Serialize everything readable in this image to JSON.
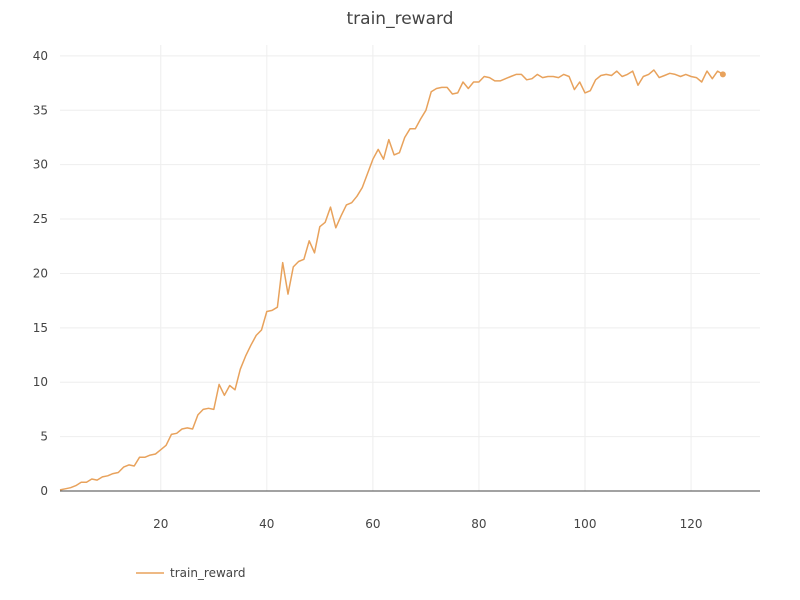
{
  "chart_data": {
    "type": "line",
    "title": "train_reward",
    "xlabel": "",
    "ylabel": "",
    "xlim": [
      1,
      133
    ],
    "ylim": [
      0,
      41
    ],
    "x_ticks": [
      20,
      40,
      60,
      80,
      100,
      120
    ],
    "y_ticks": [
      0,
      5,
      10,
      15,
      20,
      25,
      30,
      35,
      40
    ],
    "grid": true,
    "legend": "bottom-left",
    "color": "#e8a25c",
    "series": [
      {
        "name": "train_reward",
        "x": [
          1,
          2,
          3,
          4,
          5,
          6,
          7,
          8,
          9,
          10,
          11,
          12,
          13,
          14,
          15,
          16,
          17,
          18,
          19,
          20,
          21,
          22,
          23,
          24,
          25,
          26,
          27,
          28,
          29,
          30,
          31,
          32,
          33,
          34,
          35,
          36,
          37,
          38,
          39,
          40,
          41,
          42,
          43,
          44,
          45,
          46,
          47,
          48,
          49,
          50,
          51,
          52,
          53,
          54,
          55,
          56,
          57,
          58,
          59,
          60,
          61,
          62,
          63,
          64,
          65,
          66,
          67,
          68,
          69,
          70,
          71,
          72,
          73,
          74,
          75,
          76,
          77,
          78,
          79,
          80,
          81,
          82,
          83,
          84,
          85,
          86,
          87,
          88,
          89,
          90,
          91,
          92,
          93,
          94,
          95,
          96,
          97,
          98,
          99,
          100,
          101,
          102,
          103,
          104,
          105,
          106,
          107,
          108,
          109,
          110,
          111,
          112,
          113,
          114,
          115,
          116,
          117,
          118,
          119,
          120,
          121,
          122,
          123,
          124,
          125,
          126
        ],
        "values": [
          0.1,
          0.2,
          0.3,
          0.5,
          0.8,
          0.8,
          1.1,
          1.0,
          1.3,
          1.4,
          1.6,
          1.7,
          2.2,
          2.4,
          2.3,
          3.1,
          3.1,
          3.3,
          3.4,
          3.8,
          4.2,
          5.2,
          5.3,
          5.7,
          5.8,
          5.7,
          7.0,
          7.5,
          7.6,
          7.5,
          9.8,
          8.8,
          9.7,
          9.3,
          11.2,
          12.4,
          13.4,
          14.3,
          14.8,
          16.5,
          16.6,
          16.9,
          21.0,
          18.1,
          20.6,
          21.1,
          21.3,
          23.0,
          21.9,
          24.3,
          24.7,
          26.1,
          24.2,
          25.3,
          26.3,
          26.5,
          27.1,
          27.9,
          29.2,
          30.5,
          31.4,
          30.5,
          32.3,
          30.9,
          31.1,
          32.5,
          33.3,
          33.3,
          34.2,
          35.0,
          36.7,
          37.0,
          37.1,
          37.1,
          36.5,
          36.6,
          37.6,
          37.0,
          37.6,
          37.6,
          38.1,
          38.0,
          37.7,
          37.7,
          37.9,
          38.1,
          38.3,
          38.3,
          37.8,
          37.9,
          38.3,
          38.0,
          38.1,
          38.1,
          38.0,
          38.3,
          38.1,
          36.9,
          37.6,
          36.6,
          36.8,
          37.8,
          38.2,
          38.3,
          38.2,
          38.6,
          38.1,
          38.3,
          38.6,
          37.3,
          38.1,
          38.3,
          38.7,
          38.0,
          38.2,
          38.4,
          38.3,
          38.1,
          38.3,
          38.1,
          38.0,
          37.6,
          38.6,
          37.9,
          38.6,
          38.3
        ]
      }
    ]
  }
}
